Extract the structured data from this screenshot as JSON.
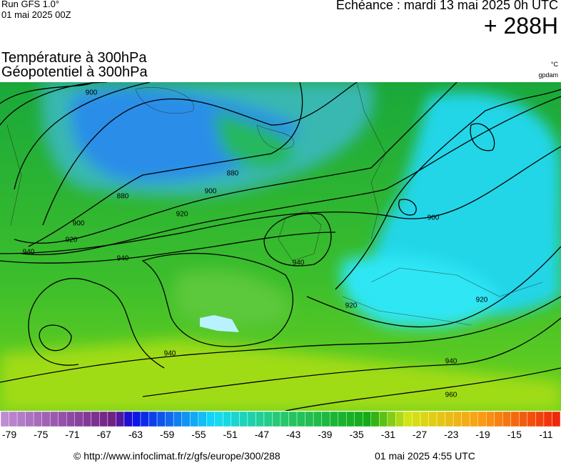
{
  "header": {
    "run": "Run GFS 1.0°",
    "date": "01 mai 2025 00Z",
    "echeance": "Echéance : mardi 13 mai 2025 0h UTC",
    "horizon": "+ 288H"
  },
  "legend": {
    "title1": "Température à 300hPa",
    "title2": "Géopotentiel à 300hPa",
    "unit1": "°C",
    "unit2": "gpdam"
  },
  "map": {
    "contour_labels": [
      900,
      880,
      900,
      920,
      900,
      920,
      940,
      940,
      940,
      880,
      900,
      920,
      920,
      940,
      940,
      960
    ]
  },
  "colorbar": {
    "labels": [
      -79,
      -75,
      -71,
      -67,
      -63,
      -59,
      -55,
      -51,
      -47,
      -43,
      -39,
      -35,
      -31,
      -27,
      -23,
      -19,
      -15,
      -11
    ]
  },
  "footer": {
    "url": "© http://www.infoclimat.fr/z/gfs/europe/300/288",
    "time": "01 mai 2025  4:55 UTC"
  }
}
